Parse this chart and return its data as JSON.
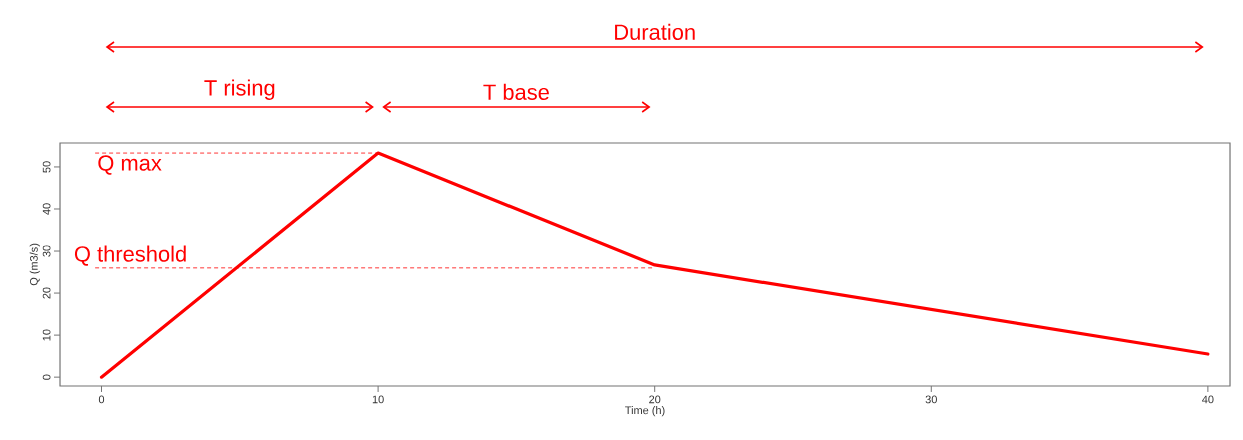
{
  "chart_data": {
    "type": "line",
    "xlabel": "Time (h)",
    "ylabel": "Q (m3/s)",
    "x": [
      0,
      10,
      20,
      40
    ],
    "values": [
      0,
      53.3,
      26.7,
      5.5
    ],
    "color": "#ff0000",
    "line_style": "solid",
    "xlim": [
      -1.5,
      40.8
    ],
    "ylim": [
      -2.1,
      55.7
    ],
    "xticks": [
      0,
      10,
      20,
      30,
      40
    ],
    "yticks": [
      0,
      10,
      20,
      30,
      40,
      50
    ],
    "ref_lines": [
      {
        "axis": "y",
        "value": 53.3,
        "label": "Q max",
        "color": "#ff0000",
        "line_style": "dashed"
      },
      {
        "axis": "y",
        "value": 26,
        "label": "Q threshold",
        "color": "#ff0000",
        "line_style": "dashed"
      }
    ],
    "annotations": [
      "Duration",
      "T rising",
      "T base"
    ]
  }
}
